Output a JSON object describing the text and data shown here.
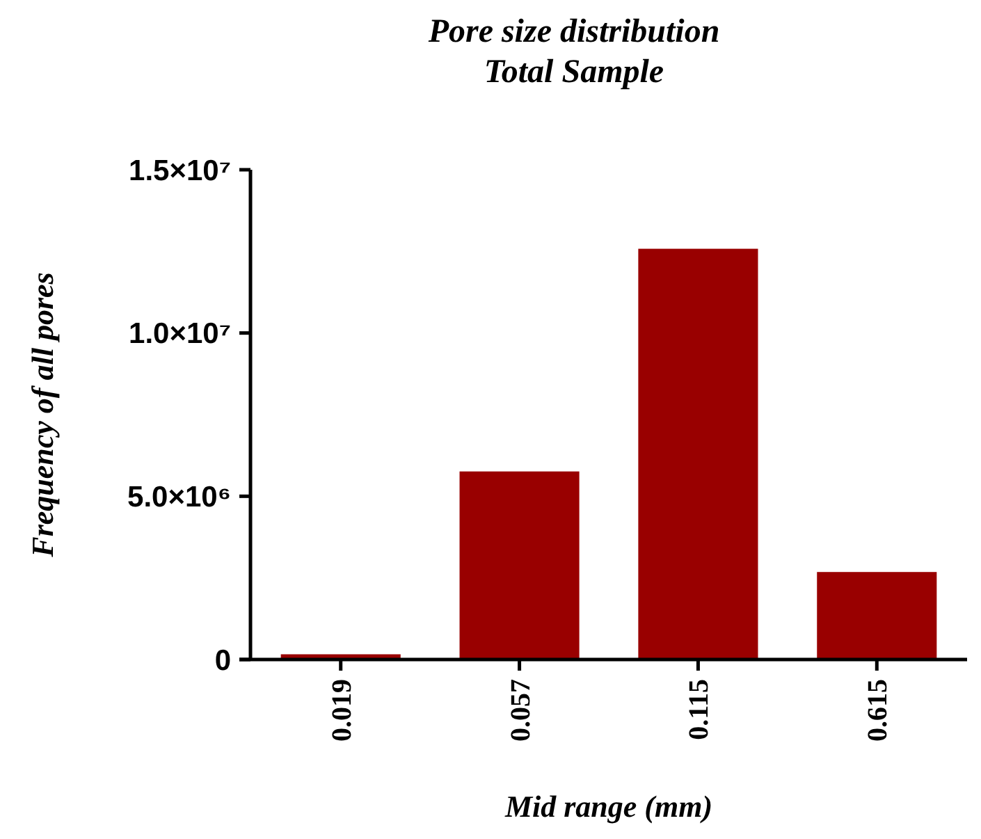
{
  "chart_data": {
    "type": "bar",
    "title": "Pore size distribution",
    "subtitle": "Total Sample",
    "xlabel": "Mid range (mm)",
    "ylabel": "Frequency of all pores",
    "categories": [
      "0.019",
      "0.057",
      "0.115",
      "0.615"
    ],
    "values": [
      160000,
      5760000,
      12580000,
      2680000
    ],
    "color": "#990000",
    "ylim": [
      0,
      15000000
    ],
    "yticks": [
      0,
      {
        "value": 5000000,
        "label": "5.0×10⁶"
      },
      {
        "value": 10000000,
        "label": "1.0×10⁷"
      },
      {
        "value": 15000000,
        "label": "1.5×10⁷"
      }
    ],
    "grid": false
  }
}
